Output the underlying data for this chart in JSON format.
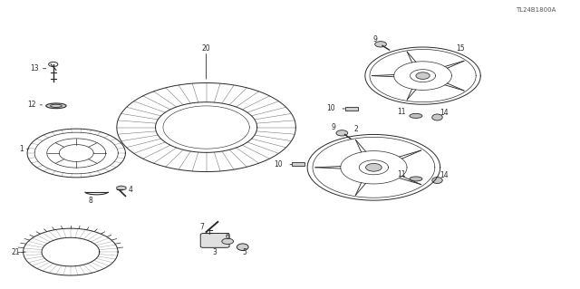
{
  "background_color": "#ffffff",
  "line_color": "#2a2a2a",
  "fig_width": 6.4,
  "fig_height": 3.19,
  "watermark": "TL24B1800A"
}
